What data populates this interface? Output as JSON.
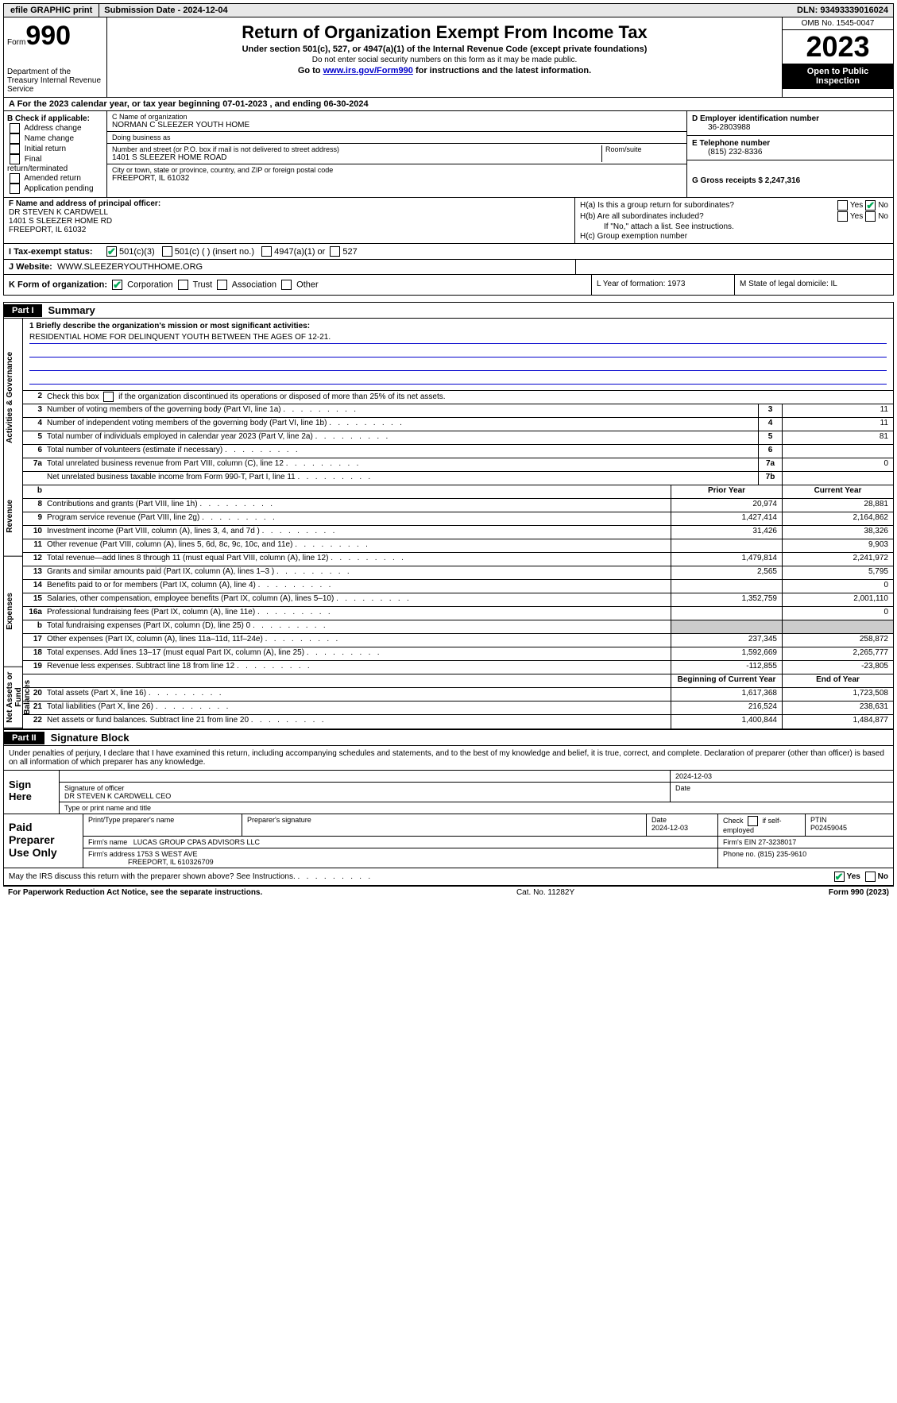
{
  "topbar": {
    "efile_btn": "efile GRAPHIC print",
    "subdate_label": "Submission Date - 2024-12-04",
    "dln": "DLN: 93493339016024"
  },
  "header": {
    "form_word": "Form",
    "form_num": "990",
    "dept": "Department of the Treasury\nInternal Revenue Service",
    "title": "Return of Organization Exempt From Income Tax",
    "sub1": "Under section 501(c), 527, or 4947(a)(1) of the Internal Revenue Code (except private foundations)",
    "sub2": "Do not enter social security numbers on this form as it may be made public.",
    "go_prefix": "Go to ",
    "go_link": "www.irs.gov/Form990",
    "go_suffix": " for instructions and the latest information.",
    "omb": "OMB No. 1545-0047",
    "year": "2023",
    "inspection": "Open to Public Inspection"
  },
  "section_a": "A For the 2023 calendar year, or tax year beginning 07-01-2023   , and ending 06-30-2024",
  "col_b": {
    "title": "B Check if applicable:",
    "opts": [
      "Address change",
      "Name change",
      "Initial return",
      "Final return/terminated",
      "Amended return",
      "Application pending"
    ]
  },
  "col_c": {
    "name_label": "C Name of organization",
    "name": "NORMAN C SLEEZER YOUTH HOME",
    "dba_label": "Doing business as",
    "dba": "",
    "addr_label": "Number and street (or P.O. box if mail is not delivered to street address)",
    "room_label": "Room/suite",
    "addr": "1401 S SLEEZER HOME ROAD",
    "city_label": "City or town, state or province, country, and ZIP or foreign postal code",
    "city": "FREEPORT, IL  61032"
  },
  "col_d": {
    "ein_label": "D Employer identification number",
    "ein": "36-2803988",
    "phone_label": "E Telephone number",
    "phone": "(815) 232-8336",
    "gross_label": "G Gross receipts $ 2,247,316"
  },
  "col_f": {
    "label": "F  Name and address of principal officer:",
    "name": "DR STEVEN K CARDWELL",
    "addr1": "1401 S SLEEZER HOME RD",
    "addr2": "FREEPORT, IL  61032"
  },
  "col_h": {
    "ha": "H(a)  Is this a group return for subordinates?",
    "hb": "H(b)  Are all subordinates included?",
    "hb_note": "If \"No,\" attach a list. See instructions.",
    "hc": "H(c)  Group exemption number",
    "yes": "Yes",
    "no": "No"
  },
  "status": {
    "label": "I   Tax-exempt status:",
    "opt1": "501(c)(3)",
    "opt2": "501(c) (  ) (insert no.)",
    "opt3": "4947(a)(1) or",
    "opt4": "527"
  },
  "website": {
    "label": "J   Website:",
    "url": "WWW.SLEEZERYOUTHHOME.ORG"
  },
  "row_k": {
    "label": "K Form of organization:",
    "opts": [
      "Corporation",
      "Trust",
      "Association",
      "Other"
    ],
    "l_label": "L Year of formation: 1973",
    "m_label": "M State of legal domicile: IL"
  },
  "part1": {
    "tag": "Part I",
    "title": "Summary",
    "mission_label": "1   Briefly describe the organization's mission or most significant activities:",
    "mission": "RESIDENTIAL HOME FOR DELINQUENT YOUTH BETWEEN THE AGES OF 12-21.",
    "line2": "Check this box       if the organization discontinued its operations or disposed of more than 25% of its net assets.",
    "vtabs": [
      "Activities & Governance",
      "Revenue",
      "Expenses",
      "Net Assets or Fund Balances"
    ],
    "gov_rows": [
      {
        "n": "3",
        "d": "Number of voting members of the governing body (Part VI, line 1a)",
        "box": "3",
        "v": "11"
      },
      {
        "n": "4",
        "d": "Number of independent voting members of the governing body (Part VI, line 1b)",
        "box": "4",
        "v": "11"
      },
      {
        "n": "5",
        "d": "Total number of individuals employed in calendar year 2023 (Part V, line 2a)",
        "box": "5",
        "v": "81"
      },
      {
        "n": "6",
        "d": "Total number of volunteers (estimate if necessary)",
        "box": "6",
        "v": ""
      },
      {
        "n": "7a",
        "d": "Total unrelated business revenue from Part VIII, column (C), line 12",
        "box": "7a",
        "v": "0"
      },
      {
        "n": "",
        "d": "Net unrelated business taxable income from Form 990-T, Part I, line 11",
        "box": "7b",
        "v": ""
      }
    ],
    "py_hdr": "Prior Year",
    "cy_hdr": "Current Year",
    "rev_rows": [
      {
        "n": "8",
        "d": "Contributions and grants (Part VIII, line 1h)",
        "py": "20,974",
        "cy": "28,881"
      },
      {
        "n": "9",
        "d": "Program service revenue (Part VIII, line 2g)",
        "py": "1,427,414",
        "cy": "2,164,862"
      },
      {
        "n": "10",
        "d": "Investment income (Part VIII, column (A), lines 3, 4, and 7d )",
        "py": "31,426",
        "cy": "38,326"
      },
      {
        "n": "11",
        "d": "Other revenue (Part VIII, column (A), lines 5, 6d, 8c, 9c, 10c, and 11e)",
        "py": "",
        "cy": "9,903"
      },
      {
        "n": "12",
        "d": "Total revenue—add lines 8 through 11 (must equal Part VIII, column (A), line 12)",
        "py": "1,479,814",
        "cy": "2,241,972"
      }
    ],
    "exp_rows": [
      {
        "n": "13",
        "d": "Grants and similar amounts paid (Part IX, column (A), lines 1–3 )",
        "py": "2,565",
        "cy": "5,795"
      },
      {
        "n": "14",
        "d": "Benefits paid to or for members (Part IX, column (A), line 4)",
        "py": "",
        "cy": "0"
      },
      {
        "n": "15",
        "d": "Salaries, other compensation, employee benefits (Part IX, column (A), lines 5–10)",
        "py": "1,352,759",
        "cy": "2,001,110"
      },
      {
        "n": "16a",
        "d": "Professional fundraising fees (Part IX, column (A), line 11e)",
        "py": "",
        "cy": "0"
      },
      {
        "n": "b",
        "d": "Total fundraising expenses (Part IX, column (D), line 25) 0",
        "py": "grey",
        "cy": "grey"
      },
      {
        "n": "17",
        "d": "Other expenses (Part IX, column (A), lines 11a–11d, 11f–24e)",
        "py": "237,345",
        "cy": "258,872"
      },
      {
        "n": "18",
        "d": "Total expenses. Add lines 13–17 (must equal Part IX, column (A), line 25)",
        "py": "1,592,669",
        "cy": "2,265,777"
      },
      {
        "n": "19",
        "d": "Revenue less expenses. Subtract line 18 from line 12",
        "py": "-112,855",
        "cy": "-23,805"
      }
    ],
    "bcy_hdr": "Beginning of Current Year",
    "ey_hdr": "End of Year",
    "net_rows": [
      {
        "n": "20",
        "d": "Total assets (Part X, line 16)",
        "py": "1,617,368",
        "cy": "1,723,508"
      },
      {
        "n": "21",
        "d": "Total liabilities (Part X, line 26)",
        "py": "216,524",
        "cy": "238,631"
      },
      {
        "n": "22",
        "d": "Net assets or fund balances. Subtract line 21 from line 20",
        "py": "1,400,844",
        "cy": "1,484,877"
      }
    ]
  },
  "part2": {
    "tag": "Part II",
    "title": "Signature Block"
  },
  "sig_intro": "Under penalties of perjury, I declare that I have examined this return, including accompanying schedules and statements, and to the best of my knowledge and belief, it is true, correct, and complete. Declaration of preparer (other than officer) is based on all information of which preparer has any knowledge.",
  "sign": {
    "left": "Sign Here",
    "date": "2024-12-03",
    "sig_label": "Signature of officer",
    "officer": "DR STEVEN K CARDWELL CEO",
    "type_label": "Type or print name and title",
    "date_label": "Date"
  },
  "prep": {
    "left": "Paid Preparer Use Only",
    "h1": "Print/Type preparer's name",
    "h2": "Preparer's signature",
    "h3": "Date",
    "h4": "Check       if self-employed",
    "h5": "PTIN",
    "date": "2024-12-03",
    "ptin": "P02459045",
    "firm_label": "Firm's name",
    "firm": "LUCAS GROUP CPAS ADVISORS LLC",
    "ein_label": "Firm's EIN",
    "ein": "27-3238017",
    "addr_label": "Firm's address",
    "addr1": "1753 S WEST AVE",
    "addr2": "FREEPORT, IL  610326709",
    "phone_label": "Phone no.",
    "phone": "(815) 235-9610"
  },
  "discuss": "May the IRS discuss this return with the preparer shown above? See Instructions.",
  "footer": {
    "left": "For Paperwork Reduction Act Notice, see the separate instructions.",
    "mid": "Cat. No. 11282Y",
    "right": "Form 990 (2023)"
  }
}
